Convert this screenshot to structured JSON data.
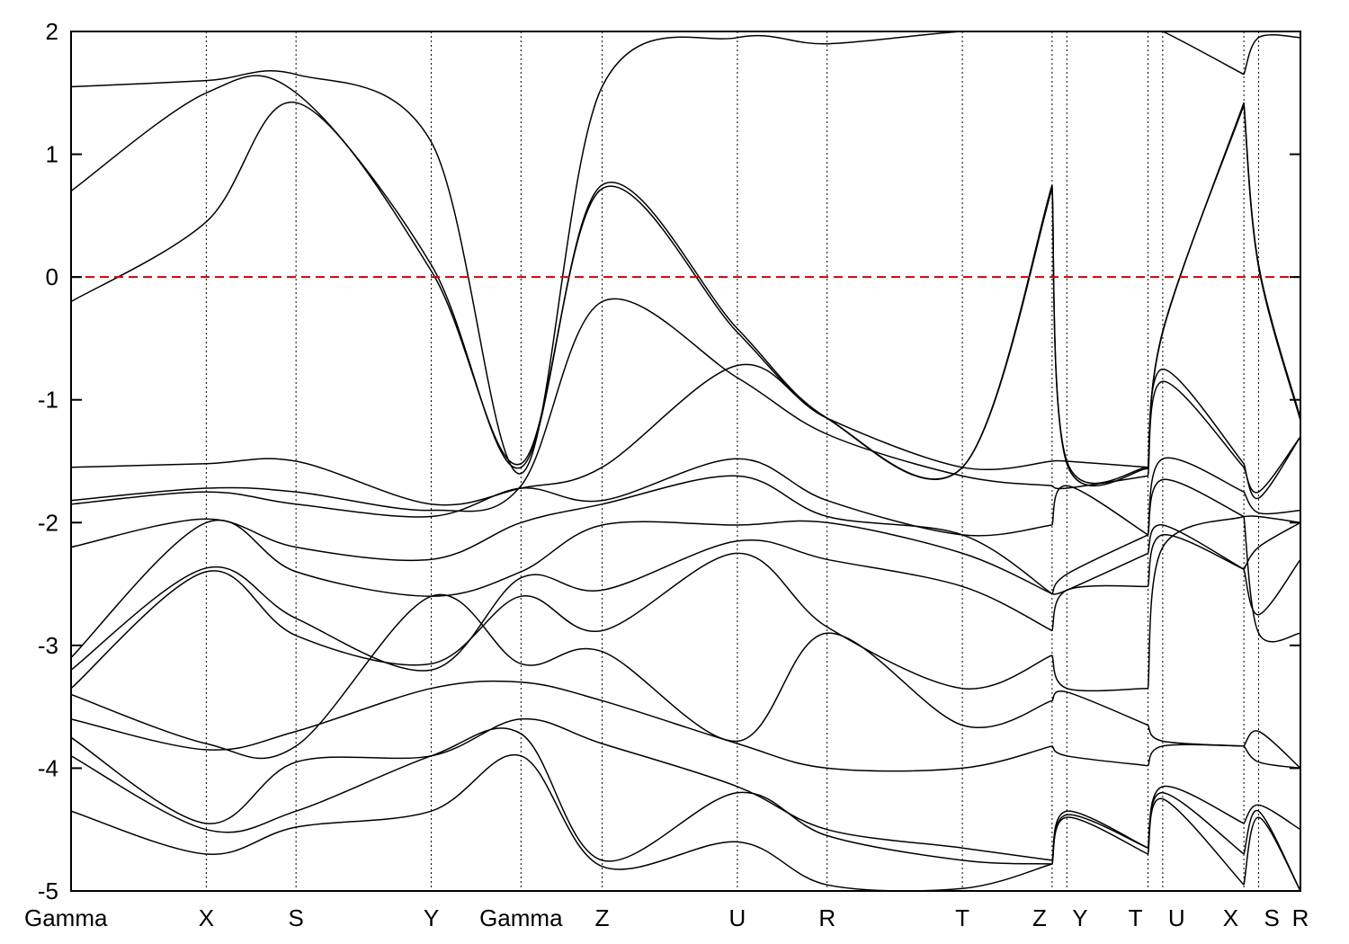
{
  "chart_data": {
    "type": "line",
    "title": "",
    "xlabel": "",
    "ylabel": "",
    "ylim": [
      -5,
      2
    ],
    "yticks": [
      -5,
      -4,
      -3,
      -2,
      -1,
      0,
      1,
      2
    ],
    "grid": "vertical dotted lines at high-symmetry points",
    "reference_line": {
      "y": 0,
      "color": "#d00000",
      "style": "dashed"
    },
    "x_points": [
      {
        "label": "Gamma",
        "x": 0
      },
      {
        "label": "X",
        "x": 1.1
      },
      {
        "label": "S",
        "x": 1.83
      },
      {
        "label": "Y",
        "x": 2.93
      },
      {
        "label": "Gamma",
        "x": 3.66
      },
      {
        "label": "Z",
        "x": 4.32
      },
      {
        "label": "U",
        "x": 5.42
      },
      {
        "label": "R",
        "x": 6.15
      },
      {
        "label": "T",
        "x": 7.25
      },
      {
        "label": "Z",
        "x": 7.98
      },
      {
        "label": "Y",
        "x": 8.1
      },
      {
        "label": "T",
        "x": 8.76
      },
      {
        "label": "U",
        "x": 8.88
      },
      {
        "label": "X",
        "x": 9.54
      },
      {
        "label": "S",
        "x": 9.66
      },
      {
        "label": "R",
        "x": 10.0
      }
    ],
    "segments": [
      {
        "from": 0,
        "to": 9
      },
      {
        "from": 9,
        "to": 11,
        "gap_before": true
      },
      {
        "from": 11,
        "to": 13,
        "gap_before": true
      },
      {
        "from": 13,
        "to": 15,
        "gap_before": true
      }
    ],
    "series": [
      {
        "values": [
          -0.2,
          0.45,
          1.42,
          0.05,
          -1.52,
          0.72,
          -0.45,
          -1.15,
          -1.55,
          0.72,
          -1.5,
          -1.55,
          -0.45,
          1.42,
          0.1,
          -1.15
        ]
      },
      {
        "values": [
          0.7,
          1.5,
          1.5,
          0.1,
          -1.55,
          0.75,
          -0.42,
          -1.15,
          -1.55,
          0.75,
          -1.52,
          -1.56,
          -0.44,
          1.4,
          0.08,
          -1.17
        ]
      },
      {
        "values": [
          1.55,
          1.6,
          1.65,
          1.1,
          -1.6,
          1.55,
          1.95,
          1.9,
          2.0,
          2.0,
          2.0,
          2.0,
          2.0,
          1.65,
          1.95,
          1.95
        ]
      },
      {
        "values": [
          -1.55,
          -1.52,
          -1.5,
          -1.85,
          -1.72,
          -1.55,
          -0.72,
          -1.15,
          -1.55,
          -1.5,
          -1.5,
          -1.55,
          -0.75,
          -1.52,
          -1.8,
          -1.3
        ]
      },
      {
        "values": [
          -1.82,
          -1.72,
          -1.75,
          -1.9,
          -1.7,
          -0.2,
          -0.82,
          -1.28,
          -1.62,
          -1.7,
          -1.72,
          -1.62,
          -0.85,
          -1.55,
          -1.75,
          -1.3
        ]
      },
      {
        "values": [
          -1.85,
          -1.75,
          -1.85,
          -1.95,
          -1.72,
          -1.82,
          -1.48,
          -1.82,
          -2.1,
          -2.02,
          -1.7,
          -2.1,
          -1.48,
          -1.75,
          -1.92,
          -1.9
        ]
      },
      {
        "values": [
          -2.2,
          -1.97,
          -2.2,
          -2.3,
          -2.0,
          -1.85,
          -1.62,
          -1.95,
          -2.1,
          -2.58,
          -2.42,
          -2.1,
          -1.65,
          -1.95,
          -1.95,
          -2.0
        ]
      },
      {
        "values": [
          -3.1,
          -2.0,
          -2.4,
          -2.6,
          -2.4,
          -2.02,
          -2.02,
          -2.0,
          -2.25,
          -2.58,
          -2.55,
          -2.25,
          -2.02,
          -2.38,
          -2.2,
          -2.0
        ]
      },
      {
        "values": [
          -3.2,
          -2.37,
          -2.78,
          -3.2,
          -2.45,
          -2.55,
          -2.15,
          -2.3,
          -2.52,
          -2.88,
          -2.55,
          -2.52,
          -2.1,
          -2.38,
          -2.75,
          -2.3
        ]
      },
      {
        "values": [
          -3.35,
          -2.4,
          -2.92,
          -3.15,
          -2.6,
          -2.88,
          -2.25,
          -2.85,
          -3.35,
          -3.08,
          -3.35,
          -3.35,
          -2.2,
          -1.95,
          -2.9,
          -2.9
        ]
      },
      {
        "values": [
          -3.4,
          -3.8,
          -3.82,
          -2.6,
          -3.15,
          -3.05,
          -3.78,
          -2.9,
          -3.65,
          -3.45,
          -3.38,
          -3.65,
          -3.78,
          -3.82,
          -3.7,
          -4.0
        ]
      },
      {
        "values": [
          -3.6,
          -3.85,
          -3.7,
          -3.35,
          -3.3,
          -3.45,
          -3.8,
          -4.0,
          -4.0,
          -3.82,
          -3.9,
          -3.98,
          -3.82,
          -3.82,
          -3.95,
          -4.0
        ]
      },
      {
        "values": [
          -3.75,
          -4.45,
          -3.95,
          -3.9,
          -3.6,
          -3.8,
          -4.15,
          -4.5,
          -4.65,
          -4.75,
          -4.35,
          -4.65,
          -4.15,
          -4.45,
          -4.3,
          -4.5
        ]
      },
      {
        "values": [
          -3.9,
          -4.5,
          -4.35,
          -3.9,
          -3.72,
          -4.75,
          -4.2,
          -4.55,
          -4.75,
          -4.78,
          -4.38,
          -4.65,
          -4.2,
          -4.7,
          -4.35,
          -5.0
        ]
      },
      {
        "values": [
          -4.35,
          -4.7,
          -4.48,
          -4.35,
          -3.9,
          -4.8,
          -4.6,
          -4.95,
          -4.98,
          -4.78,
          -4.4,
          -4.7,
          -4.25,
          -4.95,
          -4.4,
          -5.0
        ]
      }
    ]
  }
}
